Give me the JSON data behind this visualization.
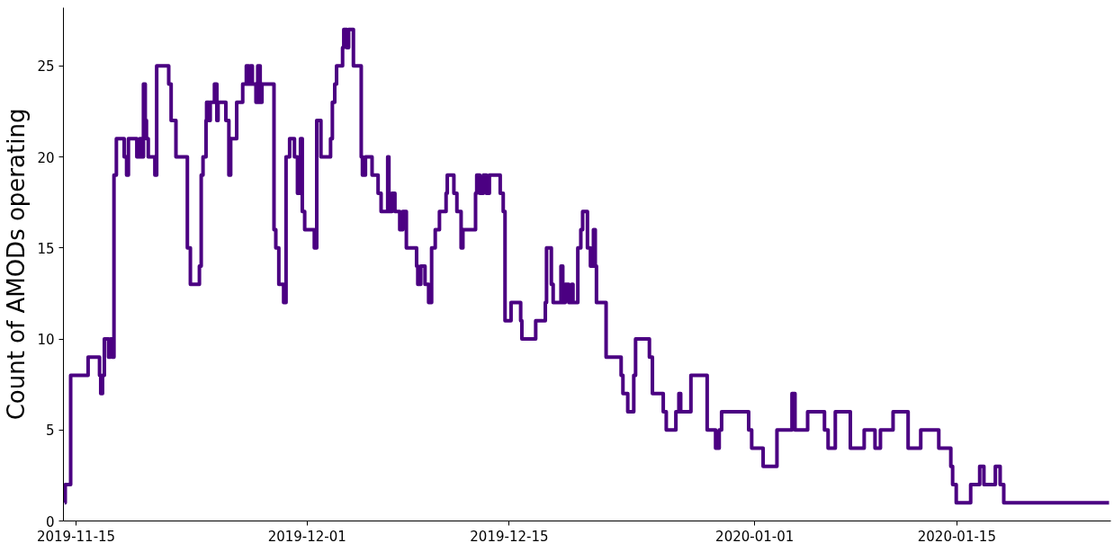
{
  "chart_data": {
    "type": "step",
    "ylabel": "Count of AMODs operating",
    "color": "#4b0082",
    "grid": false,
    "legend": false,
    "x": [
      "2019-11-14T05:00",
      "2019-11-14T06:00",
      "2019-11-14T15:00",
      "2019-11-15T20:00",
      "2019-11-16T15:00",
      "2019-11-16T17:00",
      "2019-11-16T20:00",
      "2019-11-16T23:00",
      "2019-11-17T06:00",
      "2019-11-17T09:00",
      "2019-11-17T12:00",
      "2019-11-17T15:00",
      "2019-11-17T19:00",
      "2019-11-18T08:00",
      "2019-11-18T12:00",
      "2019-11-18T15:00",
      "2019-11-19T05:00",
      "2019-11-19T10:00",
      "2019-11-19T14:00",
      "2019-11-19T16:00",
      "2019-11-19T19:00",
      "2019-11-19T21:00",
      "2019-11-20T00:00",
      "2019-11-20T11:00",
      "2019-11-20T14:00",
      "2019-11-21T10:00",
      "2019-11-21T14:00",
      "2019-11-21T22:00",
      "2019-11-22T17:00",
      "2019-11-22T22:00",
      "2019-11-23T13:00",
      "2019-11-23T16:00",
      "2019-11-23T19:00",
      "2019-11-24T00:00",
      "2019-11-24T01:00",
      "2019-11-24T05:00",
      "2019-11-24T07:00",
      "2019-11-24T14:00",
      "2019-11-24T18:00",
      "2019-11-24T20:00",
      "2019-11-25T09:00",
      "2019-11-25T14:00",
      "2019-11-25T17:00",
      "2019-11-26T03:00",
      "2019-11-26T13:00",
      "2019-11-26T19:00",
      "2019-11-26T23:00",
      "2019-11-27T02:00",
      "2019-11-27T05:00",
      "2019-11-27T11:00",
      "2019-11-27T14:00",
      "2019-11-27T18:00",
      "2019-11-27T21:00",
      "2019-11-28T17:00",
      "2019-11-28T20:00",
      "2019-11-29T01:00",
      "2019-11-29T09:00",
      "2019-11-29T13:00",
      "2019-11-29T19:00",
      "2019-11-30T03:00",
      "2019-11-30T08:00",
      "2019-11-30T13:00",
      "2019-11-30T16:00",
      "2019-11-30T20:00",
      "2019-12-01T12:00",
      "2019-12-01T16:00",
      "2019-12-01T23:00",
      "2019-12-02T15:00",
      "2019-12-02T18:00",
      "2019-12-02T22:00",
      "2019-12-03T01:00",
      "2019-12-03T11:00",
      "2019-12-03T13:00",
      "2019-12-03T18:00",
      "2019-12-03T21:00",
      "2019-12-04T05:00",
      "2019-12-04T18:00",
      "2019-12-04T20:00",
      "2019-12-05T01:00",
      "2019-12-05T12:00",
      "2019-12-05T22:00",
      "2019-12-06T03:00",
      "2019-12-06T14:00",
      "2019-12-06T16:00",
      "2019-12-06T21:00",
      "2019-12-07T02:00",
      "2019-12-07T10:00",
      "2019-12-07T15:00",
      "2019-12-07T21:00",
      "2019-12-08T14:00",
      "2019-12-08T16:00",
      "2019-12-08T21:00",
      "2019-12-09T04:00",
      "2019-12-09T10:00",
      "2019-12-09T15:00",
      "2019-12-09T21:00",
      "2019-12-10T04:00",
      "2019-12-10T15:00",
      "2019-12-10T17:00",
      "2019-12-11T04:00",
      "2019-12-11T09:00",
      "2019-12-11T16:00",
      "2019-12-11T19:00",
      "2019-12-12T16:00",
      "2019-12-12T18:00",
      "2019-12-12T23:00",
      "2019-12-13T05:00",
      "2019-12-13T10:00",
      "2019-12-13T15:00",
      "2019-12-14T09:00",
      "2019-12-14T14:00",
      "2019-12-14T17:00",
      "2019-12-15T03:00",
      "2019-12-15T19:00",
      "2019-12-15T21:00",
      "2019-12-16T20:00",
      "2019-12-17T12:00",
      "2019-12-17T14:00",
      "2019-12-17T22:00",
      "2019-12-18T01:00",
      "2019-12-18T14:00",
      "2019-12-18T17:00",
      "2019-12-18T21:00",
      "2019-12-19T03:00",
      "2019-12-19T08:00",
      "2019-12-19T10:00",
      "2019-12-19T18:00",
      "2019-12-19T23:00",
      "2019-12-20T02:00",
      "2019-12-20T10:00",
      "2019-12-20T15:00",
      "2019-12-20T20:00",
      "2019-12-20T23:00",
      "2019-12-21T01:00",
      "2019-12-21T17:00",
      "2019-12-22T18:00",
      "2019-12-22T21:00",
      "2019-12-23T05:00",
      "2019-12-23T15:00",
      "2019-12-23T18:00",
      "2019-12-24T17:00",
      "2019-12-24T22:00",
      "2019-12-25T16:00",
      "2019-12-25T21:00",
      "2019-12-26T13:00",
      "2019-12-26T18:00",
      "2019-12-26T21:00",
      "2019-12-27T14:00",
      "2019-12-28T17:00",
      "2019-12-29T07:00",
      "2019-12-29T13:00",
      "2019-12-29T17:00",
      "2019-12-31T14:00",
      "2019-12-31T19:00",
      "2020-01-01T14:00",
      "2020-01-02T13:00",
      "2020-01-03T14:00",
      "2020-01-03T19:00",
      "2020-01-04T16:00",
      "2020-01-05T20:00",
      "2020-01-06T02:00",
      "2020-01-06T14:00",
      "2020-01-07T15:00",
      "2020-01-08T14:00",
      "2020-01-09T08:00",
      "2020-01-09T17:00",
      "2020-01-10T14:00",
      "2020-01-11T15:00",
      "2020-01-12T12:00",
      "2020-01-13T18:00",
      "2020-01-14T14:00",
      "2020-01-14T17:00",
      "2020-01-14T23:00",
      "2020-01-15T23:00",
      "2020-01-16T14:00",
      "2020-01-16T21:00",
      "2020-01-17T16:00",
      "2020-01-18T00:00",
      "2020-01-18T06:00",
      "2020-01-25T13:00"
    ],
    "values": [
      1,
      2,
      8,
      9,
      8,
      7,
      8,
      10,
      9,
      10,
      9,
      19,
      21,
      20,
      19,
      21,
      20,
      21,
      20,
      24,
      22,
      21,
      20,
      19,
      25,
      24,
      22,
      20,
      15,
      13,
      14,
      19,
      20,
      22,
      23,
      22,
      23,
      24,
      22,
      23,
      22,
      19,
      21,
      23,
      24,
      25,
      24,
      25,
      24,
      23,
      25,
      23,
      24,
      16,
      15,
      13,
      12,
      20,
      21,
      20,
      18,
      21,
      17,
      16,
      15,
      22,
      20,
      21,
      23,
      24,
      25,
      26,
      27,
      26,
      27,
      25,
      20,
      19,
      20,
      19,
      18,
      17,
      20,
      17,
      18,
      17,
      16,
      17,
      15,
      14,
      13,
      14,
      13,
      12,
      15,
      16,
      17,
      18,
      19,
      18,
      17,
      15,
      16,
      18,
      19,
      18,
      19,
      18,
      19,
      18,
      17,
      11,
      12,
      11,
      10,
      11,
      12,
      15,
      13,
      12,
      14,
      12,
      13,
      12,
      13,
      12,
      15,
      16,
      17,
      15,
      14,
      16,
      14,
      12,
      9,
      8,
      7,
      6,
      8,
      10,
      9,
      7,
      6,
      5,
      6,
      7,
      6,
      8,
      5,
      4,
      5,
      6,
      5,
      4,
      3,
      5,
      7,
      5,
      6,
      5,
      4,
      6,
      4,
      5,
      4,
      5,
      6,
      4,
      5,
      4,
      3,
      2,
      1,
      2,
      3,
      2,
      3,
      2,
      1,
      1
    ],
    "xlim": [
      "2019-11-14T03:00",
      "2020-01-25T16:00"
    ],
    "xticks": [
      "2019-11-15",
      "2019-12-01",
      "2019-12-15",
      "2020-01-01",
      "2020-01-15"
    ],
    "ylim": [
      0,
      28.2
    ],
    "yticks": [
      0,
      5,
      10,
      15,
      20,
      25
    ]
  }
}
